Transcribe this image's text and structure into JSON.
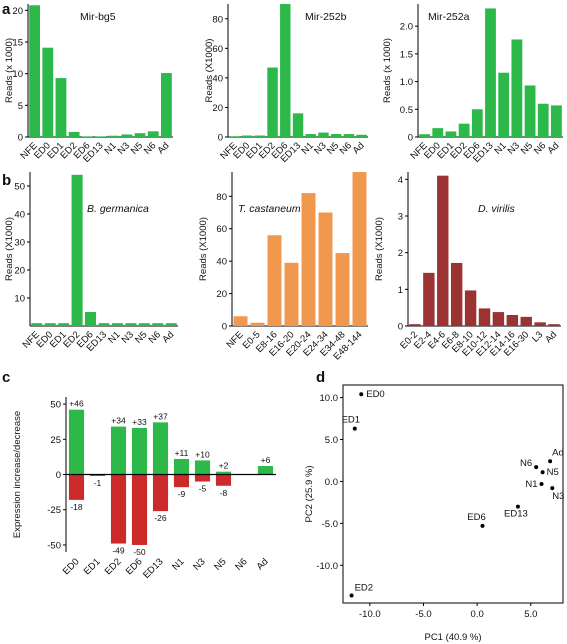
{
  "panels": {
    "a": "a",
    "b": "b",
    "c": "c",
    "d": "d"
  },
  "chart_data": [
    {
      "panel": "a",
      "type": "bar",
      "title": "Mir-bg5",
      "ylabel": "Reads (x 1000)",
      "ylim": [
        0,
        21
      ],
      "yticks": [
        0,
        5,
        10,
        15,
        20
      ],
      "color": "#2db84a",
      "categories": [
        "NFE",
        "ED0",
        "ED1",
        "ED2",
        "ED6",
        "ED13",
        "N1",
        "N3",
        "N5",
        "N6",
        "Ad"
      ],
      "tick_labels": [
        "NFE",
        "ED0",
        "ED1",
        "ED2",
        "ED6",
        "ED13",
        "N1",
        "N3",
        "N5",
        "N6",
        "Ad"
      ],
      "values": [
        20.8,
        14.1,
        9.3,
        0.8,
        0.1,
        0.1,
        0.2,
        0.4,
        0.6,
        0.9,
        10.1
      ]
    },
    {
      "panel": "a",
      "type": "bar",
      "title": "Mir-252b",
      "ylabel": "Reads (X1000)",
      "ylim": [
        0,
        90
      ],
      "yticks": [
        0,
        20,
        40,
        60,
        80
      ],
      "color": "#2db84a",
      "categories": [
        "NFE",
        "ED0",
        "ED1",
        "ED2",
        "ED6",
        "ED13",
        "N1",
        "N3",
        "N5",
        "N6",
        "Ad"
      ],
      "tick_labels": [
        "NFE",
        "ED0",
        "ED1",
        "ED2",
        "ED6",
        "ED13",
        "N1",
        "N3",
        "N5",
        "N6",
        "Ad"
      ],
      "values": [
        0.5,
        1,
        1,
        47,
        90,
        16,
        2,
        3,
        2,
        2,
        1.5
      ]
    },
    {
      "panel": "a",
      "type": "bar",
      "title": "Mir-252a",
      "ylabel": "Reads (x 1000)",
      "ylim": [
        0,
        2.4
      ],
      "yticks": [
        0,
        0.5,
        1.0,
        1.5,
        2.0
      ],
      "ytick_labels": [
        "0",
        "0.5",
        "1.0",
        "1.5",
        "2.0"
      ],
      "color": "#2db84a",
      "categories": [
        "NFE",
        "ED0",
        "ED1",
        "ED2",
        "ED6",
        "ED13",
        "N1",
        "N3",
        "N5",
        "N6",
        "Ad"
      ],
      "tick_labels": [
        "NFE",
        "ED0",
        "ED1",
        "ED2",
        "ED6",
        "ED13",
        "N1",
        "N3",
        "N5",
        "N6",
        "Ad"
      ],
      "values": [
        0.05,
        0.16,
        0.1,
        0.24,
        0.5,
        2.32,
        1.16,
        1.76,
        0.93,
        0.6,
        0.57
      ]
    },
    {
      "panel": "b",
      "type": "bar",
      "title": "B. germanica",
      "ylabel": "Reads (X1000)",
      "ylim": [
        0,
        55
      ],
      "yticks": [
        10,
        20,
        30,
        40,
        50
      ],
      "color": "#2db84a",
      "categories": [
        "NFE",
        "ED0",
        "ED1",
        "ED2",
        "ED6",
        "ED13",
        "N1",
        "N3",
        "N5",
        "N6",
        "Ad"
      ],
      "tick_labels": [
        "NFE",
        "ED0",
        "ED1",
        "ED2",
        "ED6",
        "ED13",
        "N1",
        "N3",
        "N5",
        "N6",
        "Ad"
      ],
      "values": [
        1,
        1,
        1,
        54,
        5,
        1,
        1,
        1,
        1,
        1,
        1
      ]
    },
    {
      "panel": "b",
      "type": "bar",
      "title": "T. castaneum",
      "ylabel": "Reads (X1000)",
      "ylim": [
        0,
        95
      ],
      "yticks": [
        0,
        20,
        40,
        60,
        80
      ],
      "color": "#f0994e",
      "categories": [
        "NFE",
        "E0-5",
        "E8-16",
        "E16-20",
        "E20-24",
        "E24-34",
        "E34-48",
        "E48-144"
      ],
      "tick_labels": [
        "NFE",
        "E0-5",
        "E8-16",
        "E16-20",
        "E20-24",
        "E24-34",
        "E34-48",
        "E48-144"
      ],
      "values": [
        6,
        2,
        56,
        39,
        82,
        70,
        45,
        95
      ]
    },
    {
      "panel": "b",
      "type": "bar",
      "title": "D. virilis",
      "ylabel": "Reads (X1000)",
      "ylim": [
        0,
        4.2
      ],
      "yticks": [
        0,
        1,
        2,
        3,
        4
      ],
      "color": "#9b3333",
      "categories": [
        "E0-2",
        "E2-4",
        "E4-6",
        "E6-8",
        "E8-10",
        "E10-12",
        "E12-14",
        "E14-16",
        "E16-30",
        "L3",
        "Ad"
      ],
      "tick_labels": [
        "E0-2",
        "E2-4",
        "E4-6",
        "E6-8",
        "E8-10",
        "E10-12",
        "E12-14",
        "E14-16",
        "E16-30",
        "L3",
        "Ad"
      ],
      "values": [
        0.05,
        1.45,
        4.1,
        1.72,
        0.97,
        0.48,
        0.38,
        0.3,
        0.25,
        0.1,
        0.05
      ]
    },
    {
      "panel": "c",
      "type": "bar",
      "title": "",
      "ylabel": "Expression increase/decrease",
      "ylim": [
        -55,
        55
      ],
      "yticks": [
        -50,
        -25,
        0,
        25,
        50
      ],
      "categories": [
        "ED0",
        "ED1",
        "ED2",
        "ED6",
        "ED13",
        "N1",
        "N3",
        "N5",
        "N6",
        "Ad"
      ],
      "series": [
        {
          "name": "",
          "color": "#2db84a",
          "values": [
            46,
            0,
            34,
            33,
            37,
            11,
            10,
            2,
            0,
            6
          ],
          "labels": [
            "+46",
            "",
            "+34",
            "+33",
            "+37",
            "+11",
            "+10",
            "+2",
            "",
            "+6"
          ]
        },
        {
          "name": "",
          "color": "#cc2a2a",
          "values": [
            -18,
            -1,
            -49,
            -50,
            -26,
            -9,
            -5,
            -8,
            0,
            0
          ],
          "labels": [
            "-18",
            "-1",
            "-49",
            "-50",
            "-26",
            "-9",
            "-5",
            "-8",
            "",
            ""
          ]
        }
      ]
    },
    {
      "panel": "d",
      "type": "scatter",
      "title": "",
      "xlabel": "PC1 (40.9 %)",
      "ylabel": "PC2 (25.9 %)",
      "xlim": [
        -12.5,
        8
      ],
      "ylim": [
        -14.5,
        11.5
      ],
      "xticks": [
        -10.0,
        -5.0,
        0.0,
        5.0
      ],
      "xtick_labels": [
        "-10.0",
        "-5.0",
        "0.0",
        "5.0"
      ],
      "yticks": [
        10,
        5,
        0,
        -5,
        -10
      ],
      "ytick_labels": [
        "10.0",
        "5.0",
        "0.0",
        "-5.0",
        "-10.0"
      ],
      "points": [
        {
          "label": "ED0",
          "x": -10.8,
          "y": 10.4
        },
        {
          "label": "ED1",
          "x": -11.4,
          "y": 6.3
        },
        {
          "label": "ED2",
          "x": -11.7,
          "y": -13.6
        },
        {
          "label": "ED6",
          "x": 0.5,
          "y": -5.3
        },
        {
          "label": "ED13",
          "x": 3.8,
          "y": -3.0
        },
        {
          "label": "N1",
          "x": 6.0,
          "y": -0.3
        },
        {
          "label": "N3",
          "x": 7.0,
          "y": -0.8
        },
        {
          "label": "N5",
          "x": 6.1,
          "y": 1.1
        },
        {
          "label": "N6",
          "x": 5.5,
          "y": 1.7
        },
        {
          "label": "Ad",
          "x": 6.8,
          "y": 2.4
        }
      ]
    }
  ]
}
